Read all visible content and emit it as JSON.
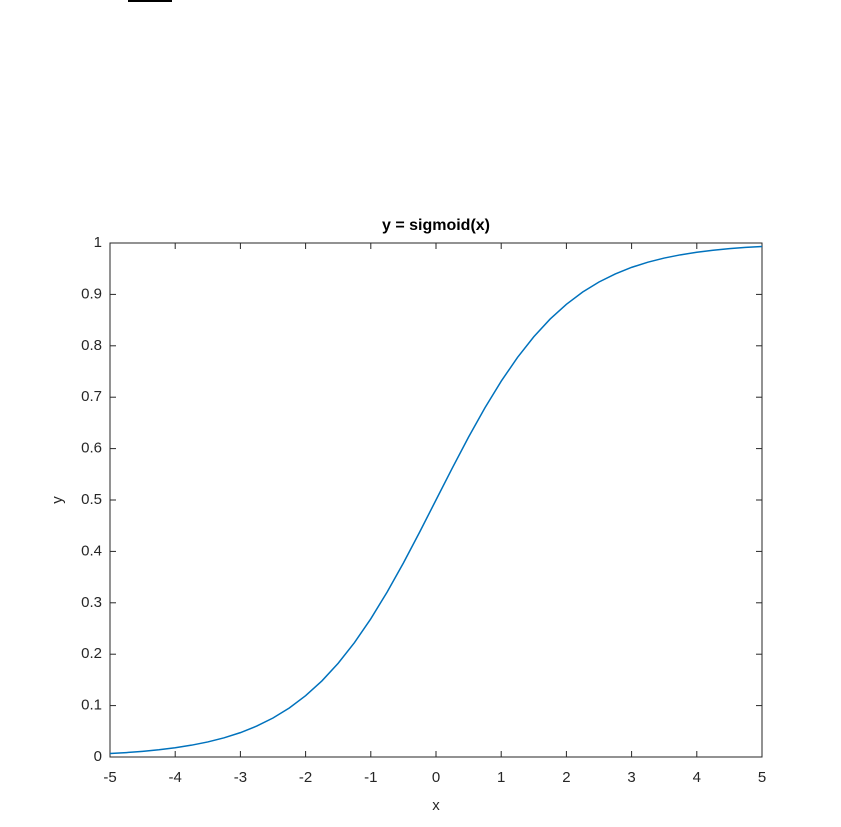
{
  "chart_data": {
    "type": "line",
    "title": "y = sigmoid(x)",
    "x_label": "x",
    "y_label": "y",
    "x": [
      -5,
      -4.75,
      -4.5,
      -4.25,
      -4,
      -3.75,
      -3.5,
      -3.25,
      -3,
      -2.75,
      -2.5,
      -2.25,
      -2,
      -1.75,
      -1.5,
      -1.25,
      -1,
      -0.75,
      -0.5,
      -0.25,
      0,
      0.25,
      0.5,
      0.75,
      1,
      1.25,
      1.5,
      1.75,
      2,
      2.25,
      2.5,
      2.75,
      3,
      3.25,
      3.5,
      3.75,
      4,
      4.25,
      4.5,
      4.75,
      5
    ],
    "series": [
      {
        "color": "#0072bd",
        "values": [
          0.0067,
          0.0086,
          0.011,
          0.0141,
          0.018,
          0.023,
          0.0293,
          0.0373,
          0.0474,
          0.0601,
          0.0759,
          0.0954,
          0.1192,
          0.148,
          0.1824,
          0.2227,
          0.2689,
          0.3208,
          0.3775,
          0.4378,
          0.5,
          0.5622,
          0.6225,
          0.6792,
          0.7311,
          0.7773,
          0.8176,
          0.852,
          0.8808,
          0.9046,
          0.9241,
          0.9399,
          0.9526,
          0.9627,
          0.9707,
          0.977,
          0.982,
          0.9859,
          0.989,
          0.9914,
          0.9933
        ]
      }
    ],
    "xlim": [
      -5,
      5
    ],
    "xticks": [
      -5,
      -4,
      -3,
      -2,
      -1,
      0,
      1,
      2,
      3,
      4,
      5
    ],
    "ylim": [
      0,
      1
    ],
    "yticks": [
      0,
      0.1,
      0.2,
      0.3,
      0.4,
      0.5,
      0.6,
      0.7,
      0.8,
      0.9,
      1
    ],
    "grid": false
  }
}
